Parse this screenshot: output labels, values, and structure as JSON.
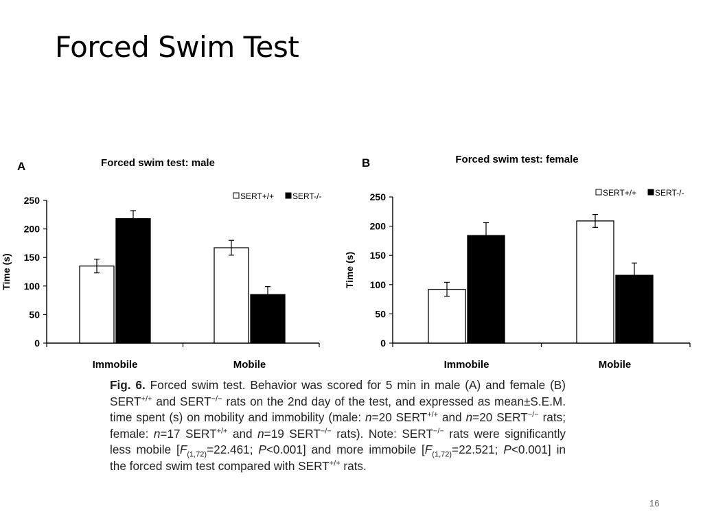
{
  "slide": {
    "title": "Forced Swim Test",
    "page_number": "16"
  },
  "chart_data": [
    {
      "panel": "A",
      "type": "bar",
      "title": "Forced swim test: male",
      "ylabel": "Time (s)",
      "ylim": [
        0,
        250
      ],
      "yticks": [
        0,
        50,
        100,
        150,
        200,
        250
      ],
      "categories": [
        "Immobile",
        "Mobile"
      ],
      "series": [
        {
          "name": "SERT+/+",
          "fill": "#ffffff",
          "values": [
            135,
            167
          ],
          "err": [
            12,
            13
          ]
        },
        {
          "name": "SERT-/-",
          "fill": "#000000",
          "values": [
            218,
            85
          ],
          "err": [
            14,
            14
          ]
        }
      ],
      "legend": "top-right"
    },
    {
      "panel": "B",
      "type": "bar",
      "title": "Forced swim test: female",
      "ylabel": "Time (s)",
      "ylim": [
        0,
        250
      ],
      "yticks": [
        0,
        50,
        100,
        150,
        200,
        250
      ],
      "categories": [
        "Immobile",
        "Mobile"
      ],
      "series": [
        {
          "name": "SERT+/+",
          "fill": "#ffffff",
          "values": [
            92,
            209
          ],
          "err": [
            12,
            11
          ]
        },
        {
          "name": "SERT-/-",
          "fill": "#000000",
          "values": [
            184,
            116
          ],
          "err": [
            22,
            21
          ]
        }
      ],
      "legend": "top-right"
    }
  ],
  "caption": {
    "label": "Fig. 6.",
    "parts": [
      " Forced swim test. Behavior was scored for 5 min in male (A) and female (B) SERT",
      "+/+",
      " and SERT",
      "−/−",
      " rats on the 2nd day of the test, and expressed as mean±S.E.M. time spent (s) on mobility and immobility (male: ",
      "n",
      "=20 SERT",
      "+/+",
      " and ",
      "n",
      "=20 SERT",
      "−/−",
      " rats; female: ",
      "n",
      "=17 SERT",
      "+/+",
      " and ",
      "n",
      "=19 SERT",
      "−/−",
      " rats). Note: SERT",
      "−/−",
      " rats were significantly less mobile [",
      "F",
      "(1,72)",
      "=22.461; ",
      "P",
      "<0.001] and more immobile [",
      "F",
      "(1,72)",
      "=22.521; ",
      "P",
      "<0.001] in the forced swim test compared with SERT",
      "+/+",
      " rats."
    ]
  }
}
